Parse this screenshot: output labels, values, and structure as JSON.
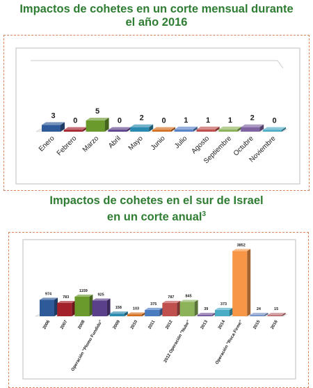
{
  "titles": {
    "chart1_line1": "Impactos de cohetes en un corte mensual durante",
    "chart1_line2": "el año 2016",
    "chart2_line1": "Impactos de cohetes en el sur de Israel",
    "chart2_line2": "en un corte anual",
    "chart2_footnote": "3"
  },
  "colors": {
    "title": "#2e7d32",
    "panel_border": "#d9825b"
  },
  "chart_data": [
    {
      "type": "bar",
      "title": "Impactos de cohetes en un corte mensual durante el año 2016",
      "categories": [
        "Enero",
        "Febrero",
        "Marzo",
        "Abril",
        "Mayo",
        "Junio",
        "Julio",
        "Agosto",
        "Septiembre",
        "Octubre",
        "Noviembre"
      ],
      "values": [
        3,
        0,
        5,
        0,
        2,
        0,
        1,
        1,
        1,
        2,
        0
      ],
      "colors": [
        "#2e5a9a",
        "#a3212b",
        "#6a9a2c",
        "#5a3f8a",
        "#2b8ab0",
        "#d46d1c",
        "#5a84c8",
        "#c0504d",
        "#8db35a",
        "#8064a2",
        "#4bacc6"
      ],
      "ylim": [
        0,
        5
      ],
      "grid": false,
      "style": "3d"
    },
    {
      "type": "bar",
      "title": "Impactos de cohetes en el sur de Israel en un corte anual",
      "categories": [
        "2006",
        "2007",
        "2008",
        "Operación \"Plomo Fundido\"",
        "2009",
        "2010",
        "2011",
        "2012",
        "2012 Operación \"Nube\"",
        "2013",
        "2014",
        "Operación \"Roca Firme\"",
        "2015",
        "2016"
      ],
      "values": [
        974,
        783,
        1159,
        925,
        158,
        103,
        375,
        787,
        845,
        39,
        373,
        3852,
        24,
        15
      ],
      "colors": [
        "#2e5a9a",
        "#a3212b",
        "#6a9a2c",
        "#5a3f8a",
        "#2b8ab0",
        "#d46d1c",
        "#4a7cc0",
        "#c0504d",
        "#8db35a",
        "#7a5fa0",
        "#4bacc6",
        "#f79646",
        "#7a95c8",
        "#c0787a"
      ],
      "ylim": [
        0,
        4000
      ],
      "grid": false,
      "style": "3d"
    }
  ]
}
